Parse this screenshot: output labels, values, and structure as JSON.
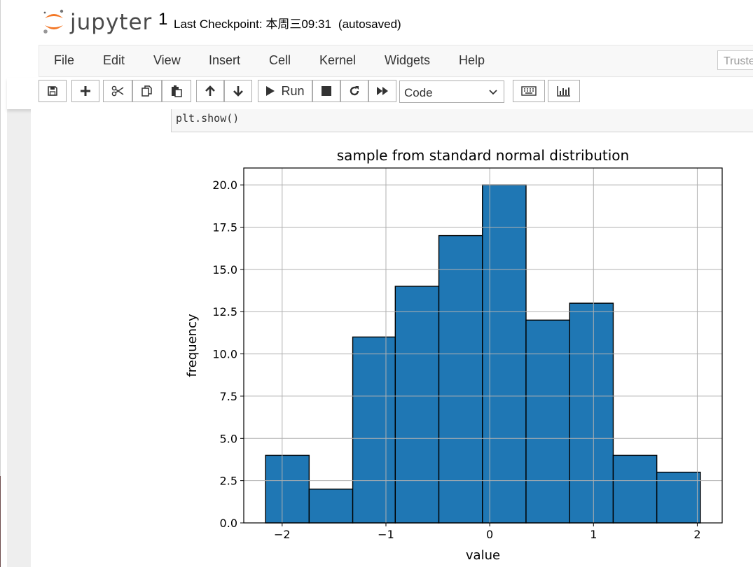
{
  "header": {
    "logo_text": "jupyter",
    "notebook_name": "1",
    "checkpoint_text": "Last Checkpoint: 本周三09:31",
    "autosave_status": "(autosaved)"
  },
  "menu": {
    "items": [
      "File",
      "Edit",
      "View",
      "Insert",
      "Cell",
      "Kernel",
      "Widgets",
      "Help"
    ],
    "trusted_label": "Truste"
  },
  "toolbar": {
    "run_label": "Run",
    "cell_type": "Code",
    "icons": [
      "save-icon",
      "plus-icon",
      "scissors-icon",
      "copy-icon",
      "paste-icon",
      "arrow-up-icon",
      "arrow-down-icon",
      "play-icon",
      "stop-icon",
      "restart-icon",
      "fast-forward-icon",
      "keyboard-icon",
      "bar-chart-icon"
    ]
  },
  "cell": {
    "code": "plt.show()"
  },
  "chart_data": {
    "type": "bar",
    "title": "sample from standard normal distribution",
    "xlabel": "value",
    "ylabel": "frequency",
    "bin_edges": [
      -2.16,
      -1.74,
      -1.32,
      -0.91,
      -0.49,
      -0.07,
      0.35,
      0.77,
      1.19,
      1.61,
      2.03
    ],
    "values": [
      4,
      2,
      11,
      14,
      17,
      20,
      12,
      13,
      4,
      3
    ],
    "xlim": [
      -2.37,
      2.24
    ],
    "ylim": [
      0,
      21
    ],
    "xticks": [
      -2,
      -1,
      0,
      1,
      2
    ],
    "xtick_labels": [
      "−2",
      "−1",
      "0",
      "1",
      "2"
    ],
    "yticks": [
      0,
      2.5,
      5,
      7.5,
      10,
      12.5,
      15,
      17.5,
      20
    ],
    "ytick_labels": [
      "0.0",
      "2.5",
      "5.0",
      "7.5",
      "10.0",
      "12.5",
      "15.0",
      "17.5",
      "20.0"
    ],
    "grid": true,
    "bar_color": "#1f77b4",
    "edge_color": "#000000"
  }
}
